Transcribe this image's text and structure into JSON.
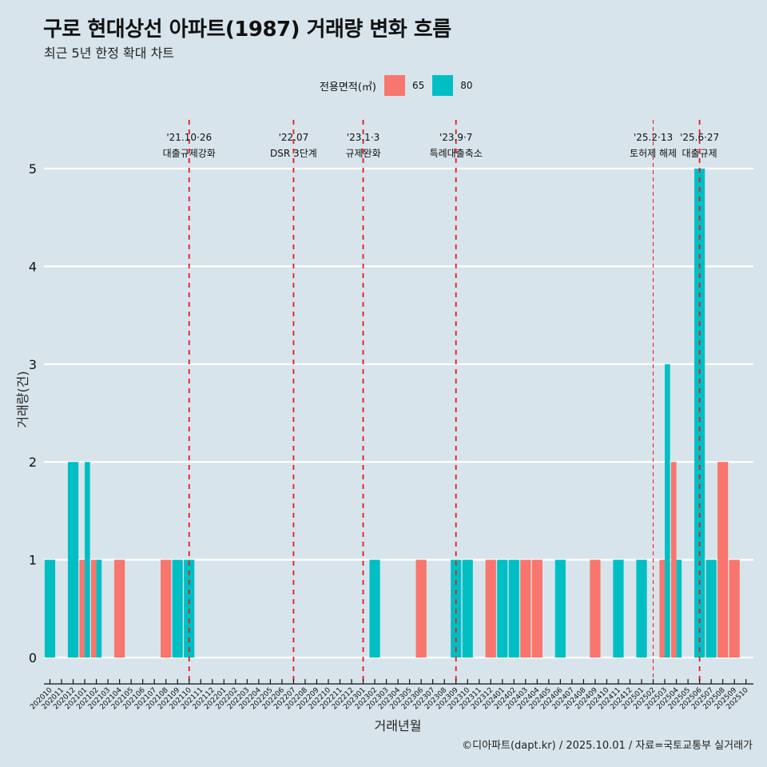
{
  "title": "구로 현대상선 아파트(1987) 거래량 변화 흐름",
  "subtitle": "최근 5년 한정 확대 차트",
  "caption": "©디아파트(dapt.kr) / 2025.10.01 / 자료=국토교통부 실거래가",
  "legend": {
    "title": "전용면적(㎡)",
    "items": [
      {
        "label": "65",
        "color": "#f8766d"
      },
      {
        "label": "80",
        "color": "#00bfc4"
      }
    ]
  },
  "chart_data": {
    "type": "bar",
    "title": "구로 현대상선 아파트(1987) 거래량 변화 흐름",
    "subtitle": "최근 5년 한정 확대 차트",
    "xlabel": "거래년월",
    "ylabel": "거래량(건)",
    "ylim": [
      0,
      5
    ],
    "yticks": [
      0,
      1,
      2,
      3,
      4,
      5
    ],
    "grid": "horizontal",
    "legend_position": "top",
    "categories": [
      "202010",
      "202011",
      "202012",
      "202101",
      "202102",
      "202103",
      "202104",
      "202105",
      "202106",
      "202107",
      "202108",
      "202109",
      "202110",
      "202111",
      "202112",
      "202201",
      "202202",
      "202203",
      "202204",
      "202205",
      "202206",
      "202207",
      "202208",
      "202209",
      "202210",
      "202211",
      "202212",
      "202301",
      "202302",
      "202303",
      "202304",
      "202305",
      "202306",
      "202307",
      "202308",
      "202309",
      "202310",
      "202311",
      "202312",
      "202401",
      "202402",
      "202403",
      "202404",
      "202405",
      "202406",
      "202407",
      "202408",
      "202409",
      "202410",
      "202411",
      "202412",
      "202501",
      "202502",
      "202503",
      "202504",
      "202505",
      "202506",
      "202507",
      "202508",
      "202509",
      "202510"
    ],
    "bars": [
      {
        "month": "202010",
        "area": "80",
        "value": 1,
        "dodge": "full"
      },
      {
        "month": "202012",
        "area": "80",
        "value": 2,
        "dodge": "full"
      },
      {
        "month": "202101",
        "area": "65",
        "value": 1,
        "dodge": "left"
      },
      {
        "month": "202101",
        "area": "80",
        "value": 2,
        "dodge": "right"
      },
      {
        "month": "202102",
        "area": "65",
        "value": 1,
        "dodge": "left"
      },
      {
        "month": "202102",
        "area": "80",
        "value": 1,
        "dodge": "right"
      },
      {
        "month": "202104",
        "area": "65",
        "value": 1,
        "dodge": "full"
      },
      {
        "month": "202108",
        "area": "65",
        "value": 1,
        "dodge": "full"
      },
      {
        "month": "202109",
        "area": "80",
        "value": 1,
        "dodge": "full"
      },
      {
        "month": "202110",
        "area": "80",
        "value": 1,
        "dodge": "full"
      },
      {
        "month": "202302",
        "area": "80",
        "value": 1,
        "dodge": "full"
      },
      {
        "month": "202306",
        "area": "65",
        "value": 1,
        "dodge": "full"
      },
      {
        "month": "202309",
        "area": "80",
        "value": 1,
        "dodge": "full"
      },
      {
        "month": "202310",
        "area": "80",
        "value": 1,
        "dodge": "full"
      },
      {
        "month": "202312",
        "area": "65",
        "value": 1,
        "dodge": "full"
      },
      {
        "month": "202401",
        "area": "80",
        "value": 1,
        "dodge": "full"
      },
      {
        "month": "202402",
        "area": "80",
        "value": 1,
        "dodge": "full"
      },
      {
        "month": "202403",
        "area": "65",
        "value": 1,
        "dodge": "full"
      },
      {
        "month": "202404",
        "area": "65",
        "value": 1,
        "dodge": "full"
      },
      {
        "month": "202406",
        "area": "80",
        "value": 1,
        "dodge": "full"
      },
      {
        "month": "202409",
        "area": "65",
        "value": 1,
        "dodge": "full"
      },
      {
        "month": "202411",
        "area": "80",
        "value": 1,
        "dodge": "full"
      },
      {
        "month": "202501",
        "area": "80",
        "value": 1,
        "dodge": "full"
      },
      {
        "month": "202503",
        "area": "65",
        "value": 1,
        "dodge": "left"
      },
      {
        "month": "202503",
        "area": "80",
        "value": 3,
        "dodge": "right"
      },
      {
        "month": "202504",
        "area": "65",
        "value": 2,
        "dodge": "left"
      },
      {
        "month": "202504",
        "area": "80",
        "value": 1,
        "dodge": "right"
      },
      {
        "month": "202506",
        "area": "80",
        "value": 5,
        "dodge": "full"
      },
      {
        "month": "202507",
        "area": "80",
        "value": 1,
        "dodge": "full"
      },
      {
        "month": "202508",
        "area": "65",
        "value": 2,
        "dodge": "full"
      },
      {
        "month": "202509",
        "area": "65",
        "value": 1,
        "dodge": "full"
      }
    ],
    "annotations": [
      {
        "month": "202110",
        "date": "'21.10·26",
        "label": "대출규제강화",
        "style": "bold"
      },
      {
        "month": "202207",
        "date": "'22.07",
        "label": "DSR 3단계",
        "style": "bold"
      },
      {
        "month": "202301",
        "date": "'23.1·3",
        "label": "규제완화",
        "style": "bold"
      },
      {
        "month": "202309",
        "date": "'23.9·7",
        "label": "특례대출축소",
        "style": "bold"
      },
      {
        "month": "202502",
        "date": "'25.2·13",
        "label": "토허제 해제",
        "style": "thin"
      },
      {
        "month": "202506",
        "date": "'25.6·27",
        "label": "대출규제",
        "style": "bold"
      }
    ],
    "annotation_color": "#e41a1c"
  }
}
